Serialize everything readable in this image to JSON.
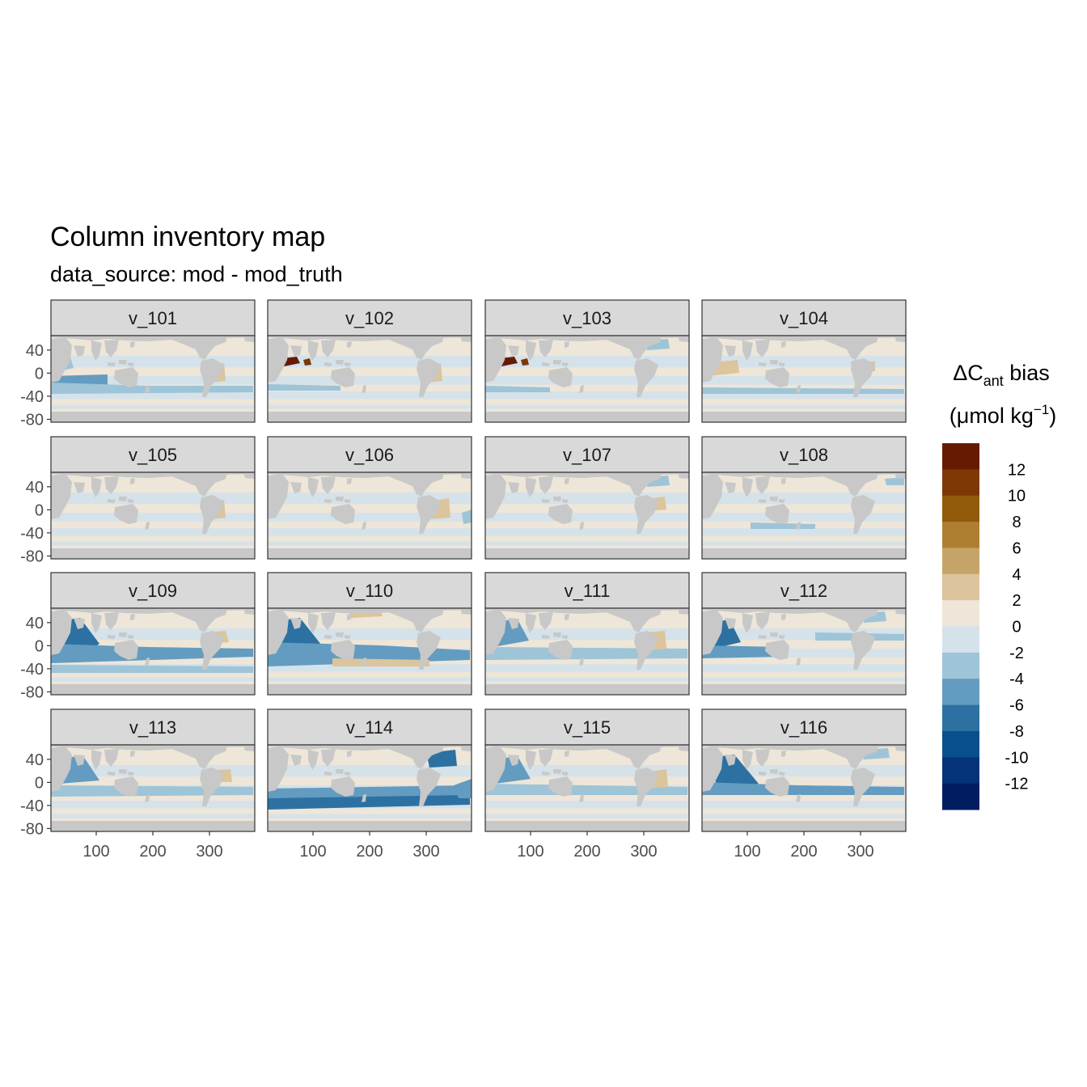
{
  "title": "Column inventory map",
  "subtitle": "data_source: mod - mod_truth",
  "legend": {
    "title_line1_prefix": "ΔC",
    "title_line1_sub": "ant",
    "title_line1_suffix": " bias",
    "title_line2_prefix": "(μmol kg",
    "title_line2_sup": "−1",
    "title_line2_suffix": ")",
    "labels": [
      "12",
      "10",
      "8",
      "6",
      "4",
      "2",
      "0",
      "-2",
      "-4",
      "-6",
      "-8",
      "-10",
      "-12"
    ],
    "breaks": [
      14,
      12,
      10,
      8,
      6,
      4,
      2,
      0,
      -2,
      -4,
      -6,
      -8,
      -10,
      -12,
      -14
    ],
    "colors": [
      "#671a02",
      "#7d3805",
      "#925a0b",
      "#ae7f30",
      "#c5a567",
      "#dcc49c",
      "#eee6d8",
      "#d5e2ea",
      "#9ec4d8",
      "#639cc0",
      "#2d71a2",
      "#08508d",
      "#043477",
      "#021c62"
    ]
  },
  "chart_data": {
    "type": "heatmap",
    "facet_panels": [
      "v_101",
      "v_102",
      "v_103",
      "v_104",
      "v_105",
      "v_106",
      "v_107",
      "v_108",
      "v_109",
      "v_110",
      "v_111",
      "v_112",
      "v_113",
      "v_114",
      "v_115",
      "v_116"
    ],
    "x_ticks": [
      "100",
      "200",
      "300"
    ],
    "y_ticks": [
      "40",
      "0",
      "-40",
      "-80"
    ],
    "x_tick_values": [
      100,
      200,
      300
    ],
    "y_tick_values": [
      40,
      0,
      -40,
      -80
    ],
    "xlim": [
      20,
      380
    ],
    "ylim": [
      -85,
      65
    ],
    "land_color": "#c8c8c8",
    "grid": false,
    "legend_position": "right"
  },
  "colors": {
    "strip_fill": "#d9d9d9",
    "panel_border": "#333333",
    "land": "#c8c8c8"
  }
}
